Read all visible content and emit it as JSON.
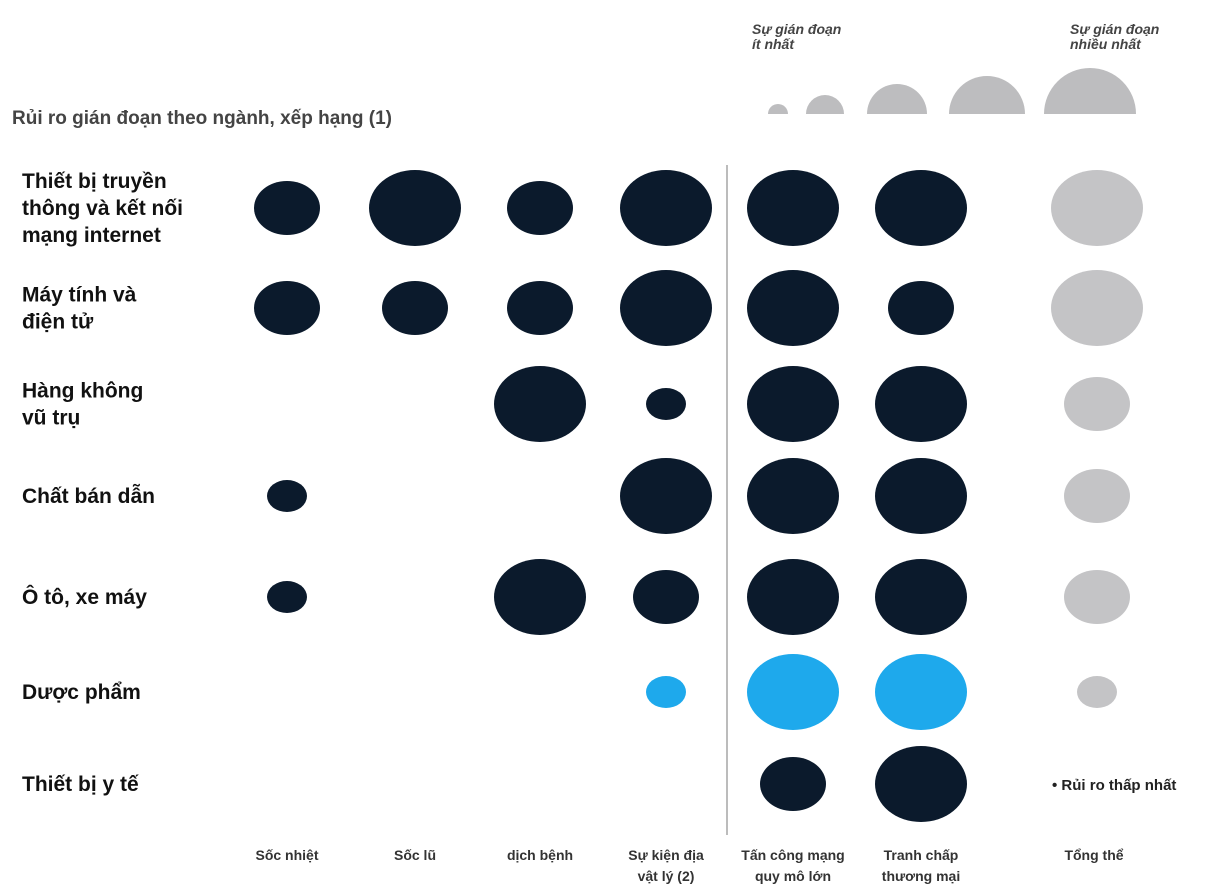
{
  "chart_data": {
    "type": "bubble-matrix",
    "title": "Rủi ro gián đoạn theo ngành, xếp hạng (1)",
    "size_legend": {
      "low_label": [
        "Sự gián đoạn",
        "ít nhất"
      ],
      "high_label": [
        "Sự gián đoạn",
        "nhiều nhất"
      ]
    },
    "note": "• Rủi ro thấp nhất",
    "columns": [
      [
        "Sốc nhiệt"
      ],
      [
        "Sốc lũ"
      ],
      [
        "dịch bệnh"
      ],
      [
        "Sự kiện địa",
        "vật lý (2)"
      ],
      [
        "Tấn công mạng",
        "quy mô lớn"
      ],
      [
        "Tranh chấp",
        "thương mại"
      ],
      [
        "Tổng thể"
      ]
    ],
    "rows": [
      {
        "label": [
          "Thiết bị truyền",
          "thông và kết nối",
          "mạng internet"
        ],
        "values": [
          2,
          3,
          2,
          3,
          3,
          3,
          3
        ],
        "highlight": false
      },
      {
        "label": [
          "Máy tính và",
          "điện tử"
        ],
        "values": [
          2,
          2,
          2,
          3,
          3,
          2,
          3
        ],
        "highlight": false
      },
      {
        "label": [
          "Hàng không",
          "vũ trụ"
        ],
        "values": [
          0,
          0,
          3,
          1,
          3,
          3,
          2
        ],
        "highlight": false
      },
      {
        "label": [
          "Chất bán dẫn"
        ],
        "values": [
          1,
          0,
          0,
          3,
          3,
          3,
          2
        ],
        "highlight": false
      },
      {
        "label": [
          "Ô tô, xe máy"
        ],
        "values": [
          1,
          0,
          3,
          2,
          3,
          3,
          2
        ],
        "highlight": false
      },
      {
        "label": [
          "Dược phẩm"
        ],
        "values": [
          0,
          0,
          0,
          1,
          3,
          3,
          1
        ],
        "highlight": true
      },
      {
        "label": [
          "Thiết bị y tế"
        ],
        "values": [
          0,
          0,
          0,
          0,
          2,
          3,
          0
        ],
        "highlight": false
      }
    ],
    "scale": [
      1,
      5
    ],
    "colors": {
      "default": "#0b1a2c",
      "highlight": "#1ea9ec",
      "overall": "#c4c4c6",
      "legend": "#bdbdbf",
      "divider": "#bcbcbc"
    }
  }
}
